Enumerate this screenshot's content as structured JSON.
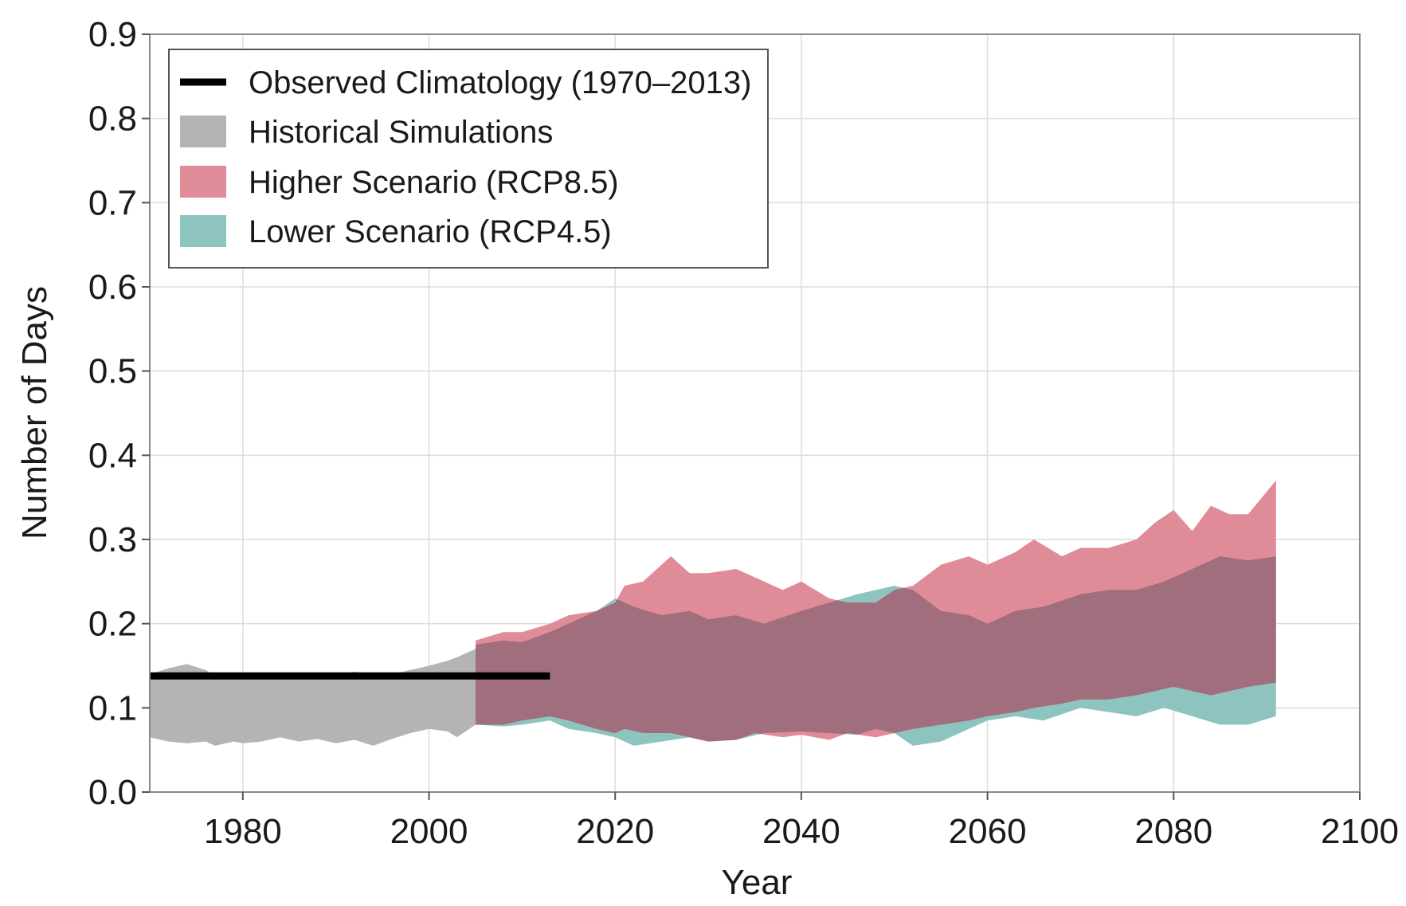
{
  "chart_data": {
    "type": "area",
    "title": "",
    "xlabel": "Year",
    "ylabel": "Number of Days",
    "xlim": [
      1970,
      2100
    ],
    "ylim": [
      0,
      0.9
    ],
    "xticks": [
      "1980",
      "2000",
      "2020",
      "2040",
      "2060",
      "2080",
      "2100"
    ],
    "yticks": [
      "0.0",
      "0.1",
      "0.2",
      "0.3",
      "0.4",
      "0.5",
      "0.6",
      "0.7",
      "0.8",
      "0.9"
    ],
    "grid": true,
    "legend_position": "top-left",
    "series": [
      {
        "name": "Historical Simulations",
        "kind": "band",
        "color": "#b4b4b4",
        "x": [
          1970,
          1972,
          1974,
          1976,
          1977,
          1979,
          1980,
          1982,
          1984,
          1986,
          1988,
          1990,
          1992,
          1994,
          1996,
          1998,
          2000,
          2002,
          2003,
          2005
        ],
        "upper": [
          0.14,
          0.147,
          0.152,
          0.145,
          0.138,
          0.136,
          0.14,
          0.138,
          0.142,
          0.139,
          0.141,
          0.137,
          0.143,
          0.138,
          0.14,
          0.145,
          0.15,
          0.156,
          0.16,
          0.17
        ],
        "lower": [
          0.065,
          0.06,
          0.058,
          0.06,
          0.055,
          0.06,
          0.058,
          0.06,
          0.065,
          0.06,
          0.063,
          0.058,
          0.062,
          0.055,
          0.063,
          0.07,
          0.075,
          0.072,
          0.065,
          0.08
        ]
      },
      {
        "name": "Lower Scenario (RCP4.5)",
        "kind": "band",
        "color": "#8ec4bf",
        "x": [
          2005,
          2008,
          2010,
          2013,
          2015,
          2018,
          2020,
          2022,
          2025,
          2028,
          2030,
          2033,
          2036,
          2040,
          2043,
          2046,
          2048,
          2050,
          2052,
          2055,
          2058,
          2060,
          2063,
          2066,
          2070,
          2073,
          2076,
          2079,
          2082,
          2085,
          2088,
          2091
        ],
        "upper": [
          0.175,
          0.18,
          0.178,
          0.19,
          0.2,
          0.215,
          0.23,
          0.22,
          0.21,
          0.215,
          0.205,
          0.21,
          0.2,
          0.215,
          0.225,
          0.235,
          0.24,
          0.245,
          0.24,
          0.215,
          0.21,
          0.2,
          0.215,
          0.22,
          0.235,
          0.24,
          0.24,
          0.25,
          0.265,
          0.28,
          0.275,
          0.28
        ],
        "lower": [
          0.08,
          0.078,
          0.08,
          0.085,
          0.075,
          0.07,
          0.065,
          0.055,
          0.06,
          0.065,
          0.06,
          0.062,
          0.07,
          0.072,
          0.07,
          0.068,
          0.075,
          0.07,
          0.055,
          0.06,
          0.075,
          0.085,
          0.09,
          0.085,
          0.1,
          0.095,
          0.09,
          0.1,
          0.09,
          0.08,
          0.08,
          0.09
        ]
      },
      {
        "name": "Higher Scenario (RCP8.5)",
        "kind": "band",
        "color": "#e08b98",
        "x": [
          2005,
          2008,
          2010,
          2013,
          2015,
          2018,
          2020,
          2021,
          2023,
          2026,
          2028,
          2030,
          2033,
          2035,
          2038,
          2040,
          2043,
          2045,
          2048,
          2050,
          2052,
          2055,
          2058,
          2060,
          2063,
          2065,
          2068,
          2070,
          2073,
          2076,
          2078,
          2080,
          2082,
          2084,
          2086,
          2088,
          2091
        ],
        "upper": [
          0.18,
          0.19,
          0.19,
          0.2,
          0.21,
          0.215,
          0.225,
          0.245,
          0.25,
          0.28,
          0.26,
          0.26,
          0.265,
          0.255,
          0.24,
          0.25,
          0.23,
          0.225,
          0.225,
          0.24,
          0.245,
          0.27,
          0.28,
          0.27,
          0.285,
          0.3,
          0.28,
          0.29,
          0.29,
          0.3,
          0.32,
          0.335,
          0.31,
          0.34,
          0.33,
          0.33,
          0.37
        ],
        "lower": [
          0.08,
          0.08,
          0.085,
          0.09,
          0.085,
          0.075,
          0.07,
          0.075,
          0.07,
          0.07,
          0.065,
          0.06,
          0.062,
          0.07,
          0.065,
          0.068,
          0.062,
          0.07,
          0.065,
          0.07,
          0.075,
          0.08,
          0.085,
          0.09,
          0.095,
          0.1,
          0.105,
          0.11,
          0.11,
          0.115,
          0.12,
          0.125,
          0.12,
          0.115,
          0.12,
          0.125,
          0.13
        ]
      },
      {
        "name": "Observed Climatology (1970–2013)",
        "kind": "line",
        "color": "#000000",
        "x": [
          1970,
          2013
        ],
        "values": [
          0.138,
          0.138
        ]
      }
    ],
    "overlap_color": "#a06e7c",
    "legend": [
      {
        "label": "Observed Climatology (1970–2013)",
        "swatch": "line",
        "color": "#000000"
      },
      {
        "label": "Historical Simulations",
        "swatch": "box",
        "color": "#b4b4b4"
      },
      {
        "label": "Higher Scenario (RCP8.5)",
        "swatch": "box",
        "color": "#e08b98"
      },
      {
        "label": "Lower Scenario (RCP4.5)",
        "swatch": "box",
        "color": "#8ec4bf"
      }
    ]
  }
}
